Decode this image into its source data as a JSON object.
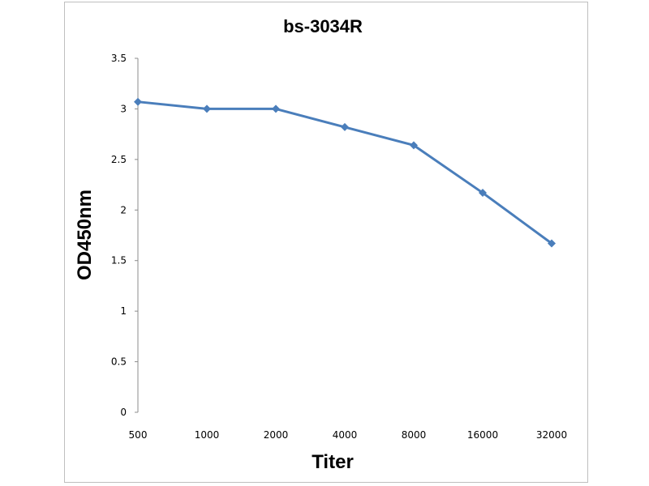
{
  "chart_data": {
    "type": "line",
    "title": "bs-3034R",
    "xlabel": "Titer",
    "ylabel": "OD450nm",
    "categories": [
      "500",
      "1000",
      "2000",
      "4000",
      "8000",
      "16000",
      "32000"
    ],
    "series": [
      {
        "values": [
          3.07,
          3.0,
          3.0,
          2.82,
          2.64,
          2.17,
          1.67
        ]
      }
    ],
    "ylim": [
      0,
      3.5
    ],
    "yticks": [
      "0",
      "0.5",
      "1",
      "1.5",
      "2",
      "2.5",
      "3",
      "3.5"
    ],
    "grid": false,
    "legend": "none",
    "line_color": "#4a7ebb"
  }
}
